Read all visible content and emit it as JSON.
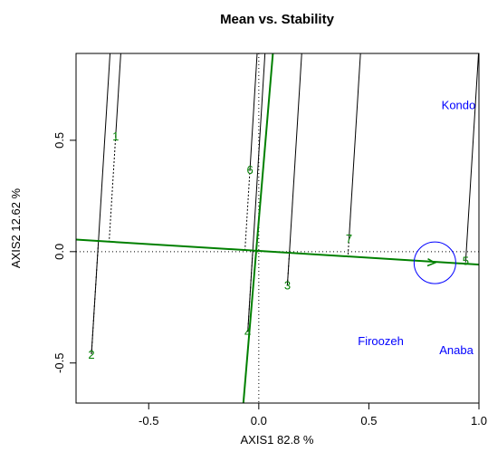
{
  "chart_data": {
    "type": "scatter",
    "title": "Mean vs. Stability",
    "xlabel": "AXIS1 82.8 %",
    "ylabel": "AXIS2 12.62 %",
    "xlim": [
      -0.83,
      1.0
    ],
    "ylim": [
      -0.68,
      0.89
    ],
    "xticks": [
      -0.5,
      0.0,
      0.5,
      1.0
    ],
    "xtick_labels": [
      "-0.5",
      "0.0",
      "0.5",
      "1.0"
    ],
    "yticks": [
      -0.5,
      0.0,
      0.5
    ],
    "ytick_labels": [
      "-0.5",
      "0.0",
      "0.5"
    ],
    "genotypes": [
      {
        "label": "1",
        "x": -0.65,
        "y": 0.52
      },
      {
        "label": "2",
        "x": -0.76,
        "y": -0.46
      },
      {
        "label": "3",
        "x": 0.13,
        "y": -0.15
      },
      {
        "label": "4",
        "x": -0.05,
        "y": -0.36
      },
      {
        "label": "5",
        "x": 0.94,
        "y": -0.04
      },
      {
        "label": "6",
        "x": -0.04,
        "y": 0.37
      },
      {
        "label": "7",
        "x": 0.41,
        "y": 0.06
      }
    ],
    "environments": [
      {
        "label": "Kondo",
        "x": 0.83,
        "y": 0.66
      },
      {
        "label": "Firoozeh",
        "x": 0.45,
        "y": -0.4
      },
      {
        "label": "Anaba",
        "x": 0.82,
        "y": -0.44
      }
    ],
    "average_environment": {
      "x": 0.8,
      "y": -0.05
    },
    "aec_abscissa": {
      "x1": -0.83,
      "y1": 0.054,
      "x2": 1.0,
      "y2": -0.058
    },
    "aec_ordinate": {
      "x1": -0.07,
      "y1": -0.68,
      "x2": 0.064,
      "y2": 0.89
    },
    "colors": {
      "axis_lines": "#008000",
      "genotype_labels": "#008000",
      "environment_labels": "#0000ff",
      "circle": "#0000ff",
      "projection_lines": "#000000"
    }
  }
}
